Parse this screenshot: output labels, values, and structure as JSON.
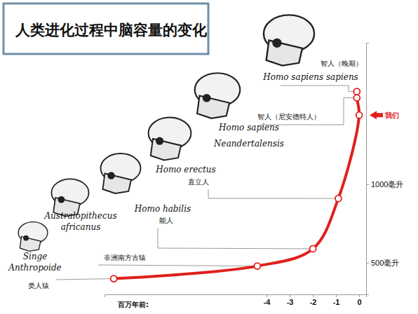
{
  "chart_data": {
    "type": "line",
    "title": "人类进化过程中脑容量的变化",
    "xlabel": "百万年前:",
    "x": [
      -10.6,
      -4.4,
      -2.0,
      -0.9,
      0,
      -0.1,
      -0.1
    ],
    "values": [
      400,
      480,
      590,
      910,
      1440,
      1550,
      1590
    ],
    "color": "#e0201c",
    "marker": "circle",
    "grid": false,
    "xlim": [
      -11,
      0.3
    ],
    "xticks": [
      -4,
      -3,
      -2,
      -1,
      0
    ],
    "ylim": [
      300,
      1900
    ],
    "yticks": [
      {
        "value": 500,
        "label": "500毫升"
      },
      {
        "value": 1000,
        "label": "1000毫升"
      }
    ],
    "point_labels": [
      {
        "latin": [
          "Singe",
          "Anthropoide"
        ],
        "chinese": "类人猿"
      },
      {
        "latin": [
          "Australopithecus",
          "africanus"
        ],
        "chinese": "非洲南方古猿"
      },
      {
        "latin": [
          "Homo habilis"
        ],
        "chinese": "能人"
      },
      {
        "latin": [
          "Homo erectus"
        ],
        "chinese": "直立人"
      },
      {
        "chinese": "我们"
      },
      {
        "latin": [
          "Homo sapiens",
          "Neandertalensis"
        ],
        "chinese": "智人（尼安德特人）"
      },
      {
        "latin": [
          "Homo sapiens sapiens"
        ],
        "chinese": "智人（晚期）"
      }
    ]
  }
}
